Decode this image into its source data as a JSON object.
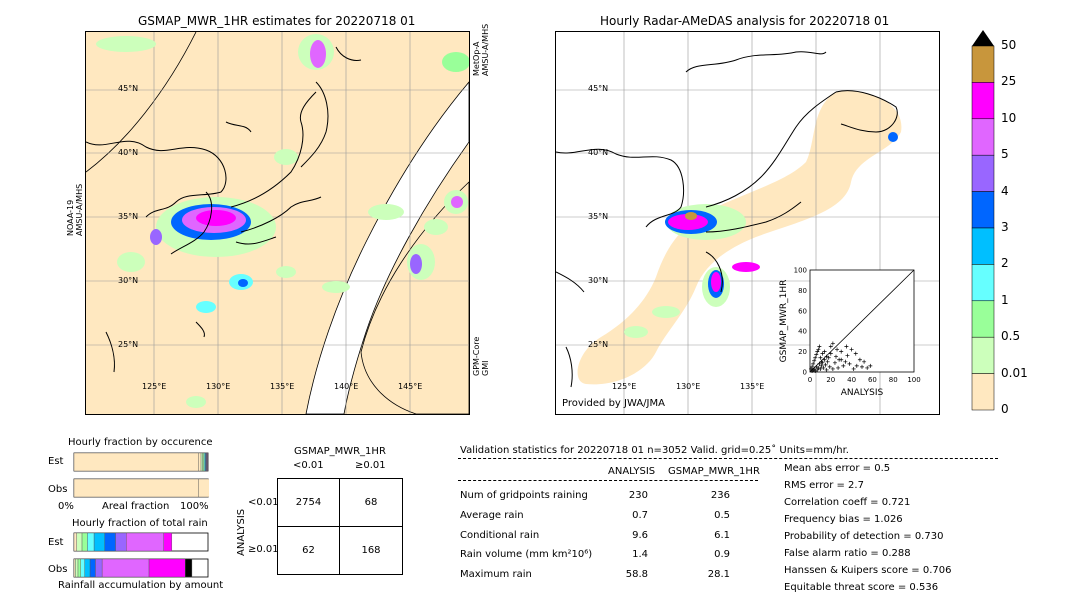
{
  "left_map": {
    "title": "GSMAP_MWR_1HR estimates for 20220718 01",
    "sensor_left": "NOAA-19\nAMSU-A/MHS",
    "sensor_right_top": "MetOp-A\nAMSU-A/MHS",
    "sensor_right_bottom": "GPM-Core\nGMI",
    "lat_labels": [
      "45°N",
      "40°N",
      "35°N",
      "30°N",
      "25°N"
    ],
    "lon_labels": [
      "125°E",
      "130°E",
      "135°E",
      "140°E",
      "145°E"
    ]
  },
  "right_map": {
    "title": "Hourly Radar-AMeDAS analysis for 20220718 01",
    "lat_labels": [
      "45°N",
      "40°N",
      "35°N",
      "30°N",
      "25°N"
    ],
    "lon_labels": [
      "125°E",
      "130°E",
      "135°E"
    ],
    "credit": "Provided by JWA/JMA"
  },
  "colorbar": {
    "labels": [
      "50",
      "25",
      "10",
      "5",
      "4",
      "3",
      "2",
      "1",
      "0.5",
      "0.01",
      "0"
    ],
    "colors": [
      "#c8963c",
      "#ff00ff",
      "#e066ff",
      "#9966ff",
      "#0066ff",
      "#00bfff",
      "#66ffff",
      "#99ff99",
      "#ccffbb",
      "#ffe8c0"
    ]
  },
  "chart_data": [
    {
      "type": "scatter",
      "title": "",
      "xlabel": "ANALYSIS",
      "ylabel": "GSMAP_MWR_1HR",
      "xlim": [
        0,
        100
      ],
      "ylim": [
        0,
        100
      ],
      "xticks": [
        "0",
        "20",
        "40",
        "60",
        "80",
        "100"
      ],
      "yticks": [
        "0",
        "20",
        "40",
        "60",
        "80",
        "100"
      ],
      "points": [
        [
          2,
          1
        ],
        [
          3,
          2
        ],
        [
          4,
          3
        ],
        [
          5,
          1
        ],
        [
          6,
          5
        ],
        [
          7,
          2
        ],
        [
          8,
          4
        ],
        [
          9,
          8
        ],
        [
          10,
          3
        ],
        [
          11,
          6
        ],
        [
          12,
          9
        ],
        [
          13,
          4
        ],
        [
          14,
          12
        ],
        [
          15,
          7
        ],
        [
          16,
          2
        ],
        [
          17,
          10
        ],
        [
          18,
          14
        ],
        [
          19,
          5
        ],
        [
          20,
          18
        ],
        [
          22,
          3
        ],
        [
          24,
          9
        ],
        [
          25,
          15
        ],
        [
          27,
          4
        ],
        [
          28,
          12
        ],
        [
          30,
          20
        ],
        [
          32,
          6
        ],
        [
          34,
          10
        ],
        [
          36,
          16
        ],
        [
          38,
          8
        ],
        [
          40,
          22
        ],
        [
          42,
          3
        ],
        [
          45,
          6
        ],
        [
          48,
          12
        ],
        [
          50,
          5
        ],
        [
          55,
          4
        ],
        [
          58,
          6
        ],
        [
          1,
          3
        ],
        [
          2,
          5
        ],
        [
          3,
          8
        ],
        [
          4,
          11
        ],
        [
          5,
          14
        ],
        [
          6,
          17
        ],
        [
          7,
          20
        ],
        [
          8,
          22
        ],
        [
          9,
          25
        ],
        [
          10,
          14
        ],
        [
          11,
          10
        ],
        [
          12,
          18
        ],
        [
          14,
          20
        ],
        [
          16,
          15
        ],
        [
          20,
          25
        ],
        [
          22,
          28
        ],
        [
          26,
          22
        ],
        [
          30,
          12
        ],
        [
          35,
          25
        ],
        [
          44,
          18
        ],
        [
          52,
          10
        ]
      ]
    },
    {
      "type": "bar",
      "title": "Hourly fraction by occurence",
      "categories": [
        "Est",
        "Obs"
      ],
      "series": [
        {
          "name": "0",
          "values": [
            0.928,
            0.928
          ]
        },
        {
          "name": "0.01",
          "values": [
            0.02,
            0.12
          ]
        },
        {
          "name": "0.5",
          "values": [
            0.012,
            0.02
          ]
        },
        {
          "name": "1",
          "values": [
            0.01,
            0.01
          ]
        },
        {
          "name": "2",
          "values": [
            0.008,
            0.006
          ]
        },
        {
          "name": "3",
          "values": [
            0.006,
            0.004
          ]
        },
        {
          "name": "4",
          "values": [
            0.004,
            0.003
          ]
        },
        {
          "name": "5",
          "values": [
            0.004,
            0.003
          ]
        },
        {
          "name": "10",
          "values": [
            0.004,
            0.004
          ]
        },
        {
          "name": "25",
          "values": [
            0.002,
            0.003
          ]
        },
        {
          "name": "50",
          "values": [
            0.002,
            0.002
          ]
        }
      ],
      "xlabel": "Areal fraction",
      "xticks": [
        "0%",
        "100%"
      ]
    },
    {
      "type": "bar",
      "title": "Hourly fraction of total rain",
      "categories": [
        "Est",
        "Obs"
      ],
      "series": [
        {
          "name": "0.01",
          "values": [
            0.02,
            0.01
          ]
        },
        {
          "name": "0.5",
          "values": [
            0.04,
            0.02
          ]
        },
        {
          "name": "1",
          "values": [
            0.04,
            0.02
          ]
        },
        {
          "name": "2",
          "values": [
            0.05,
            0.03
          ]
        },
        {
          "name": "3",
          "values": [
            0.08,
            0.04
          ]
        },
        {
          "name": "4",
          "values": [
            0.08,
            0.04
          ]
        },
        {
          "name": "5",
          "values": [
            0.08,
            0.05
          ]
        },
        {
          "name": "10",
          "values": [
            0.28,
            0.35
          ]
        },
        {
          "name": "25",
          "values": [
            0.06,
            0.27
          ]
        },
        {
          "name": "50",
          "values": [
            0.0,
            0.05
          ]
        }
      ],
      "xlabel": "Rainfall accumulation by amount"
    }
  ],
  "contingency": {
    "title": "GSMAP_MWR_1HR",
    "col_headers": [
      "<0.01",
      "≥0.01"
    ],
    "row_label": "ANALYSIS",
    "row_headers": [
      "<0.01",
      "≥0.01"
    ],
    "cells": [
      [
        "2754",
        "68"
      ],
      [
        "62",
        "168"
      ]
    ]
  },
  "validation": {
    "header": "Validation statistics for 20220718 01  n=3052 Valid. grid=0.25˚ Units=mm/hr.",
    "col_analysis": "ANALYSIS",
    "col_gsmap": "GSMAP_MWR_1HR",
    "rows": [
      {
        "label": "Num of gridpoints raining",
        "analysis": "230",
        "gsmap": "236"
      },
      {
        "label": "Average rain",
        "analysis": "0.7",
        "gsmap": "0.5"
      },
      {
        "label": "Conditional rain",
        "analysis": "9.6",
        "gsmap": "6.1"
      },
      {
        "label": "Rain volume (mm km²10⁶)",
        "analysis": "1.4",
        "gsmap": "0.9"
      },
      {
        "label": "Maximum rain",
        "analysis": "58.8",
        "gsmap": "28.1"
      }
    ],
    "scores": [
      "Mean abs error =    0.5",
      "RMS error =    2.7",
      "Correlation coeff =  0.721",
      "Frequency bias =  1.026",
      "Probability of detection =  0.730",
      "False alarm ratio =  0.288",
      "Hanssen & Kuipers score =  0.706",
      "Equitable threat score =  0.536"
    ]
  }
}
